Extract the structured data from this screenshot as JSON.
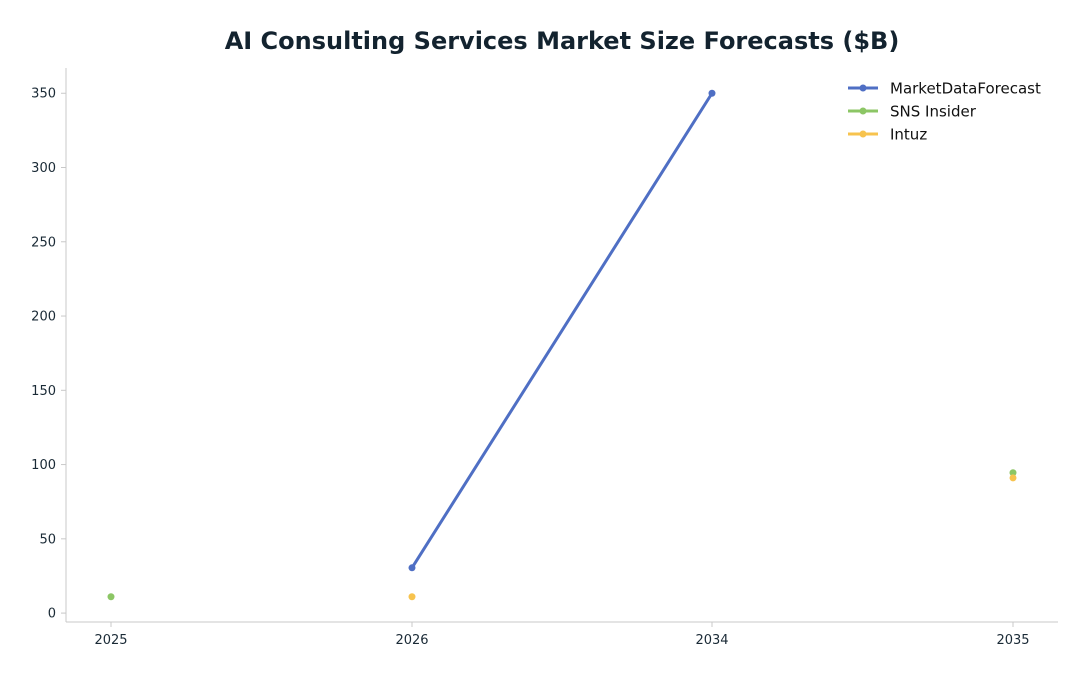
{
  "chart_data": {
    "type": "line",
    "title": "AI Consulting Services Market Size Forecasts ($B)",
    "xlabel": "",
    "ylabel": "",
    "categories": [
      "2025",
      "2026",
      "2034",
      "2035"
    ],
    "ylim": [
      -6,
      367
    ],
    "yticks": [
      0,
      50,
      100,
      150,
      200,
      250,
      300,
      350
    ],
    "grid": false,
    "legend_position": "top-right",
    "series": [
      {
        "name": "MarketDataForecast",
        "color": "#4f6fc4",
        "values": [
          null,
          30.5,
          350,
          null
        ]
      },
      {
        "name": "SNS Insider",
        "color": "#8cc665",
        "values": [
          11,
          null,
          null,
          94.5
        ]
      },
      {
        "name": "Intuz",
        "color": "#f7c34e",
        "values": [
          null,
          11,
          null,
          91
        ]
      }
    ]
  }
}
